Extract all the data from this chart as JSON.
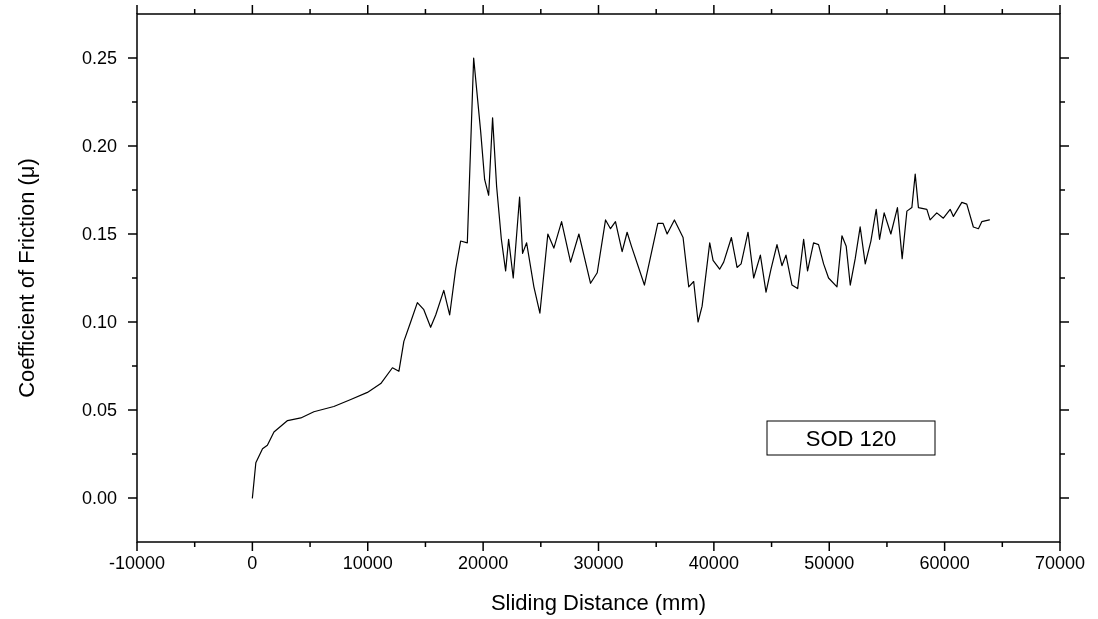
{
  "chart_data": {
    "type": "line",
    "xlabel": "Sliding Distance (mm)",
    "ylabel": "Coefficient of Friction (μ)",
    "xlim": [
      -10000,
      70000
    ],
    "ylim": [
      -0.025,
      0.275
    ],
    "xticks": [
      -10000,
      {
        "value": -5000,
        "label": null
      },
      0,
      {
        "value": 5000,
        "label": null
      },
      10000,
      {
        "value": 15000,
        "label": null
      },
      20000,
      {
        "value": 25000,
        "label": null
      },
      30000,
      {
        "value": 35000,
        "label": null
      },
      40000,
      {
        "value": 45000,
        "label": null
      },
      50000,
      {
        "value": 55000,
        "label": null
      },
      60000,
      {
        "value": 65000,
        "label": null
      },
      {
        "value": 70000,
        "label": "70000"
      }
    ],
    "yticks": [
      {
        "value": 0,
        "label": "0.00"
      },
      {
        "value": 0.025,
        "label": null
      },
      {
        "value": 0.05,
        "label": "0.05"
      },
      {
        "value": 0.075,
        "label": null
      },
      {
        "value": 0.1,
        "label": "0.10"
      },
      {
        "value": 0.125,
        "label": null
      },
      {
        "value": 0.15,
        "label": "0.15"
      },
      {
        "value": 0.175,
        "label": null
      },
      {
        "value": 0.2,
        "label": "0.20"
      },
      {
        "value": 0.225,
        "label": null
      },
      {
        "value": 0.25,
        "label": "0.25"
      }
    ],
    "grid": false,
    "marker": "none",
    "line_style": "solid",
    "annotations": [
      "SOD 120"
    ],
    "series": [
      {
        "color": "#000000",
        "x": [
          0,
          300,
          880,
          1300,
          1870,
          3050,
          4200,
          5330,
          7060,
          8530,
          9970,
          11130,
          12140,
          12700,
          13130,
          13720,
          14300,
          14860,
          15450,
          15890,
          16590,
          17100,
          17620,
          18050,
          18630,
          19180,
          19790,
          20130,
          20480,
          20820,
          21170,
          21580,
          21950,
          22210,
          22610,
          23160,
          23420,
          23770,
          24400,
          24920,
          25610,
          26130,
          26800,
          27580,
          28300,
          29310,
          29890,
          30610,
          31040,
          31470,
          32050,
          32480,
          32860,
          33980,
          35140,
          35600,
          35950,
          36580,
          37330,
          37820,
          38250,
          38630,
          38980,
          39640,
          39930,
          40500,
          40850,
          41520,
          42010,
          42360,
          42960,
          43450,
          44030,
          44520,
          44950,
          45470,
          45900,
          46250,
          46770,
          47260,
          47780,
          48120,
          48640,
          49070,
          49510,
          49940,
          50670,
          51100,
          51470,
          51820,
          52250,
          52680,
          53120,
          53610,
          54070,
          54360,
          54760,
          55340,
          55910,
          56320,
          56730,
          57160,
          57450,
          57730,
          58460,
          58740,
          59320,
          59890,
          60480,
          60760,
          61490,
          61920,
          62490,
          62930,
          63220,
          63880
        ],
        "values": [
          0,
          0.02,
          0.028,
          0.03,
          0.0375,
          0.044,
          0.0455,
          0.049,
          0.052,
          0.056,
          0.06,
          0.065,
          0.074,
          0.072,
          0.089,
          0.1,
          0.111,
          0.107,
          0.097,
          0.104,
          0.118,
          0.104,
          0.13,
          0.146,
          0.145,
          0.25,
          0.208,
          0.181,
          0.172,
          0.216,
          0.177,
          0.147,
          0.129,
          0.147,
          0.125,
          0.171,
          0.139,
          0.145,
          0.12,
          0.105,
          0.15,
          0.142,
          0.157,
          0.134,
          0.15,
          0.122,
          0.128,
          0.158,
          0.153,
          0.157,
          0.14,
          0.151,
          0.143,
          0.121,
          0.156,
          0.156,
          0.15,
          0.158,
          0.148,
          0.12,
          0.123,
          0.1,
          0.109,
          0.145,
          0.135,
          0.13,
          0.134,
          0.148,
          0.131,
          0.133,
          0.151,
          0.125,
          0.138,
          0.117,
          0.13,
          0.144,
          0.132,
          0.138,
          0.121,
          0.119,
          0.147,
          0.129,
          0.145,
          0.144,
          0.133,
          0.125,
          0.12,
          0.149,
          0.143,
          0.121,
          0.136,
          0.154,
          0.133,
          0.146,
          0.164,
          0.147,
          0.162,
          0.15,
          0.165,
          0.136,
          0.163,
          0.165,
          0.184,
          0.165,
          0.164,
          0.158,
          0.162,
          0.159,
          0.164,
          0.16,
          0.168,
          0.167,
          0.154,
          0.153,
          0.157,
          0.158
        ]
      }
    ]
  }
}
